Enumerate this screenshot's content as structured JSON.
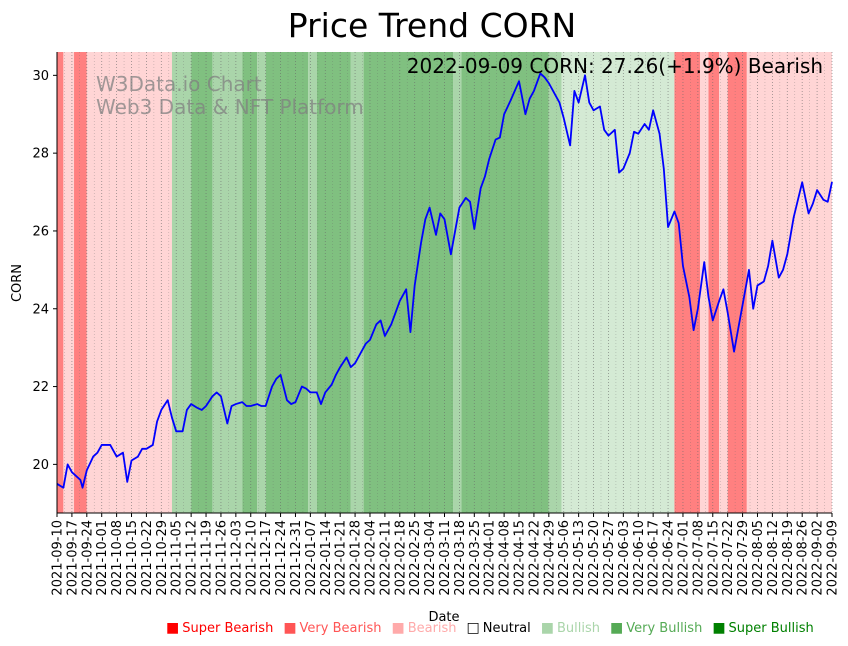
{
  "chart_data": {
    "type": "line",
    "title": "Price Trend CORN",
    "xlabel": "Date",
    "ylabel": "CORN",
    "ylim": [
      18.75,
      30.6
    ],
    "yticks": [
      20,
      22,
      24,
      26,
      28,
      30
    ],
    "xrange": [
      "2021-09-10",
      "2022-09-09"
    ],
    "xticks": [
      "2021-09-10",
      "2021-09-17",
      "2021-09-24",
      "2021-10-01",
      "2021-10-08",
      "2021-10-15",
      "2021-10-22",
      "2021-10-29",
      "2021-11-05",
      "2021-11-12",
      "2021-11-19",
      "2021-11-26",
      "2021-12-03",
      "2021-12-10",
      "2021-12-17",
      "2021-12-24",
      "2021-12-31",
      "2022-01-07",
      "2022-01-14",
      "2022-01-21",
      "2022-01-28",
      "2022-02-04",
      "2022-02-11",
      "2022-02-18",
      "2022-02-25",
      "2022-03-04",
      "2022-03-11",
      "2022-03-18",
      "2022-03-25",
      "2022-04-01",
      "2022-04-08",
      "2022-04-15",
      "2022-04-22",
      "2022-04-29",
      "2022-05-06",
      "2022-05-13",
      "2022-05-20",
      "2022-05-27",
      "2022-06-03",
      "2022-06-10",
      "2022-06-17",
      "2022-06-24",
      "2022-07-01",
      "2022-07-08",
      "2022-07-15",
      "2022-07-22",
      "2022-07-29",
      "2022-08-05",
      "2022-08-12",
      "2022-08-19",
      "2022-08-26",
      "2022-09-02",
      "2022-09-09"
    ],
    "annotation": "2022-09-09 CORN: 27.26(+1.9%) Bearish",
    "watermark": [
      "W3Data.io Chart",
      "Web3 Data & NFT Platform"
    ],
    "series": [
      {
        "name": "CORN",
        "color": "#0000ff",
        "points": [
          [
            "2021-09-10",
            19.5
          ],
          [
            "2021-09-13",
            19.4
          ],
          [
            "2021-09-15",
            20.0
          ],
          [
            "2021-09-17",
            19.8
          ],
          [
            "2021-09-21",
            19.6
          ],
          [
            "2021-09-22",
            19.4
          ],
          [
            "2021-09-24",
            19.85
          ],
          [
            "2021-09-27",
            20.2
          ],
          [
            "2021-09-29",
            20.3
          ],
          [
            "2021-10-01",
            20.5
          ],
          [
            "2021-10-05",
            20.5
          ],
          [
            "2021-10-08",
            20.2
          ],
          [
            "2021-10-11",
            20.3
          ],
          [
            "2021-10-13",
            19.55
          ],
          [
            "2021-10-15",
            20.1
          ],
          [
            "2021-10-18",
            20.2
          ],
          [
            "2021-10-20",
            20.4
          ],
          [
            "2021-10-22",
            20.4
          ],
          [
            "2021-10-25",
            20.5
          ],
          [
            "2021-10-27",
            21.1
          ],
          [
            "2021-10-29",
            21.4
          ],
          [
            "2021-11-01",
            21.65
          ],
          [
            "2021-11-03",
            21.2
          ],
          [
            "2021-11-05",
            20.85
          ],
          [
            "2021-11-08",
            20.85
          ],
          [
            "2021-11-10",
            21.4
          ],
          [
            "2021-11-12",
            21.55
          ],
          [
            "2021-11-15",
            21.45
          ],
          [
            "2021-11-17",
            21.4
          ],
          [
            "2021-11-19",
            21.5
          ],
          [
            "2021-11-22",
            21.75
          ],
          [
            "2021-11-24",
            21.85
          ],
          [
            "2021-11-26",
            21.75
          ],
          [
            "2021-11-29",
            21.05
          ],
          [
            "2021-12-01",
            21.5
          ],
          [
            "2021-12-03",
            21.55
          ],
          [
            "2021-12-06",
            21.6
          ],
          [
            "2021-12-08",
            21.5
          ],
          [
            "2021-12-10",
            21.5
          ],
          [
            "2021-12-13",
            21.55
          ],
          [
            "2021-12-15",
            21.5
          ],
          [
            "2021-12-17",
            21.5
          ],
          [
            "2021-12-20",
            22.0
          ],
          [
            "2021-12-22",
            22.2
          ],
          [
            "2021-12-24",
            22.3
          ],
          [
            "2021-12-27",
            21.65
          ],
          [
            "2021-12-29",
            21.55
          ],
          [
            "2021-12-31",
            21.6
          ],
          [
            "2022-01-03",
            22.0
          ],
          [
            "2022-01-05",
            21.95
          ],
          [
            "2022-01-07",
            21.85
          ],
          [
            "2022-01-10",
            21.85
          ],
          [
            "2022-01-12",
            21.55
          ],
          [
            "2022-01-14",
            21.85
          ],
          [
            "2022-01-17",
            22.05
          ],
          [
            "2022-01-19",
            22.3
          ],
          [
            "2022-01-21",
            22.5
          ],
          [
            "2022-01-24",
            22.75
          ],
          [
            "2022-01-26",
            22.5
          ],
          [
            "2022-01-28",
            22.6
          ],
          [
            "2022-01-31",
            22.9
          ],
          [
            "2022-02-02",
            23.1
          ],
          [
            "2022-02-04",
            23.2
          ],
          [
            "2022-02-07",
            23.6
          ],
          [
            "2022-02-09",
            23.7
          ],
          [
            "2022-02-11",
            23.3
          ],
          [
            "2022-02-14",
            23.6
          ],
          [
            "2022-02-16",
            23.9
          ],
          [
            "2022-02-18",
            24.2
          ],
          [
            "2022-02-21",
            24.5
          ],
          [
            "2022-02-23",
            23.4
          ],
          [
            "2022-02-25",
            24.6
          ],
          [
            "2022-02-28",
            25.7
          ],
          [
            "2022-03-02",
            26.3
          ],
          [
            "2022-03-04",
            26.6
          ],
          [
            "2022-03-07",
            25.9
          ],
          [
            "2022-03-09",
            26.45
          ],
          [
            "2022-03-11",
            26.3
          ],
          [
            "2022-03-14",
            25.4
          ],
          [
            "2022-03-16",
            26.0
          ],
          [
            "2022-03-18",
            26.6
          ],
          [
            "2022-03-21",
            26.85
          ],
          [
            "2022-03-23",
            26.75
          ],
          [
            "2022-03-25",
            26.05
          ],
          [
            "2022-03-28",
            27.1
          ],
          [
            "2022-03-30",
            27.4
          ],
          [
            "2022-04-01",
            27.85
          ],
          [
            "2022-04-04",
            28.35
          ],
          [
            "2022-04-06",
            28.4
          ],
          [
            "2022-04-08",
            29.0
          ],
          [
            "2022-04-11",
            29.35
          ],
          [
            "2022-04-13",
            29.6
          ],
          [
            "2022-04-15",
            29.85
          ],
          [
            "2022-04-18",
            29.0
          ],
          [
            "2022-04-20",
            29.4
          ],
          [
            "2022-04-22",
            29.6
          ],
          [
            "2022-04-25",
            30.05
          ],
          [
            "2022-04-27",
            29.95
          ],
          [
            "2022-04-29",
            29.8
          ],
          [
            "2022-05-02",
            29.5
          ],
          [
            "2022-05-04",
            29.3
          ],
          [
            "2022-05-06",
            28.9
          ],
          [
            "2022-05-09",
            28.2
          ],
          [
            "2022-05-11",
            29.6
          ],
          [
            "2022-05-13",
            29.3
          ],
          [
            "2022-05-16",
            30.0
          ],
          [
            "2022-05-18",
            29.3
          ],
          [
            "2022-05-20",
            29.1
          ],
          [
            "2022-05-23",
            29.2
          ],
          [
            "2022-05-25",
            28.6
          ],
          [
            "2022-05-27",
            28.45
          ],
          [
            "2022-05-30",
            28.6
          ],
          [
            "2022-06-01",
            27.5
          ],
          [
            "2022-06-03",
            27.6
          ],
          [
            "2022-06-06",
            28.0
          ],
          [
            "2022-06-08",
            28.55
          ],
          [
            "2022-06-10",
            28.5
          ],
          [
            "2022-06-13",
            28.75
          ],
          [
            "2022-06-15",
            28.6
          ],
          [
            "2022-06-17",
            29.1
          ],
          [
            "2022-06-20",
            28.5
          ],
          [
            "2022-06-22",
            27.6
          ],
          [
            "2022-06-24",
            26.1
          ],
          [
            "2022-06-27",
            26.5
          ],
          [
            "2022-06-29",
            26.2
          ],
          [
            "2022-07-01",
            25.1
          ],
          [
            "2022-07-04",
            24.3
          ],
          [
            "2022-07-06",
            23.45
          ],
          [
            "2022-07-08",
            24.0
          ],
          [
            "2022-07-11",
            25.2
          ],
          [
            "2022-07-13",
            24.3
          ],
          [
            "2022-07-15",
            23.7
          ],
          [
            "2022-07-18",
            24.2
          ],
          [
            "2022-07-20",
            24.5
          ],
          [
            "2022-07-22",
            23.9
          ],
          [
            "2022-07-25",
            22.9
          ],
          [
            "2022-07-27",
            23.5
          ],
          [
            "2022-07-29",
            24.1
          ],
          [
            "2022-08-01",
            25.0
          ],
          [
            "2022-08-03",
            24.0
          ],
          [
            "2022-08-05",
            24.6
          ],
          [
            "2022-08-08",
            24.7
          ],
          [
            "2022-08-10",
            25.1
          ],
          [
            "2022-08-12",
            25.75
          ],
          [
            "2022-08-15",
            24.8
          ],
          [
            "2022-08-17",
            25.0
          ],
          [
            "2022-08-19",
            25.4
          ],
          [
            "2022-08-22",
            26.35
          ],
          [
            "2022-08-24",
            26.8
          ],
          [
            "2022-08-26",
            27.25
          ],
          [
            "2022-08-29",
            26.45
          ],
          [
            "2022-08-31",
            26.7
          ],
          [
            "2022-09-02",
            27.05
          ],
          [
            "2022-09-05",
            26.8
          ],
          [
            "2022-09-07",
            26.75
          ],
          [
            "2022-09-09",
            27.26
          ]
        ]
      }
    ],
    "regions": [
      {
        "start": "2021-09-10",
        "end": "2021-09-13",
        "level": "very_bearish"
      },
      {
        "start": "2021-09-13",
        "end": "2021-09-18",
        "level": "bearish"
      },
      {
        "start": "2021-09-18",
        "end": "2021-09-24",
        "level": "very_bearish"
      },
      {
        "start": "2021-09-24",
        "end": "2021-11-03",
        "level": "bearish"
      },
      {
        "start": "2021-11-03",
        "end": "2021-11-12",
        "level": "bullish"
      },
      {
        "start": "2021-11-12",
        "end": "2021-11-22",
        "level": "very_bullish"
      },
      {
        "start": "2021-11-22",
        "end": "2021-12-06",
        "level": "bullish"
      },
      {
        "start": "2021-12-06",
        "end": "2021-12-13",
        "level": "very_bullish"
      },
      {
        "start": "2021-12-13",
        "end": "2021-12-17",
        "level": "bullish"
      },
      {
        "start": "2021-12-17",
        "end": "2022-01-06",
        "level": "very_bullish"
      },
      {
        "start": "2022-01-06",
        "end": "2022-01-10",
        "level": "bullish"
      },
      {
        "start": "2022-01-10",
        "end": "2022-01-26",
        "level": "very_bullish"
      },
      {
        "start": "2022-01-26",
        "end": "2022-02-01",
        "level": "bullish"
      },
      {
        "start": "2022-02-01",
        "end": "2022-03-15",
        "level": "very_bullish"
      },
      {
        "start": "2022-03-15",
        "end": "2022-03-19",
        "level": "bullish"
      },
      {
        "start": "2022-03-19",
        "end": "2022-04-29",
        "level": "very_bullish"
      },
      {
        "start": "2022-04-29",
        "end": "2022-05-05",
        "level": "bullish"
      },
      {
        "start": "2022-05-05",
        "end": "2022-06-27",
        "level": "neutral_bullish"
      },
      {
        "start": "2022-06-27",
        "end": "2022-07-09",
        "level": "very_bearish"
      },
      {
        "start": "2022-07-09",
        "end": "2022-07-13",
        "level": "bearish"
      },
      {
        "start": "2022-07-13",
        "end": "2022-07-18",
        "level": "very_bearish"
      },
      {
        "start": "2022-07-18",
        "end": "2022-07-22",
        "level": "bearish"
      },
      {
        "start": "2022-07-22",
        "end": "2022-07-31",
        "level": "very_bearish"
      },
      {
        "start": "2022-07-31",
        "end": "2022-09-09",
        "level": "bearish"
      }
    ],
    "region_colors": {
      "very_bearish": "#ff8080",
      "bearish": "#ffd5d5",
      "neutral_bullish": "#d4ead4",
      "bullish": "#aad5aa",
      "very_bullish": "#80c080"
    },
    "legend": [
      {
        "label": "Super Bearish",
        "color": "#ff0000",
        "symbol": "■"
      },
      {
        "label": "Very Bearish",
        "color": "#ff5555",
        "symbol": "■"
      },
      {
        "label": "Bearish",
        "color": "#ffaaaa",
        "symbol": "■"
      },
      {
        "label": "Neutral",
        "color": "#000000",
        "symbol": "□"
      },
      {
        "label": "Bullish",
        "color": "#aad5aa",
        "symbol": "■"
      },
      {
        "label": "Very Bullish",
        "color": "#55aa55",
        "symbol": "■"
      },
      {
        "label": "Super Bullish",
        "color": "#008000",
        "symbol": "■"
      }
    ]
  }
}
